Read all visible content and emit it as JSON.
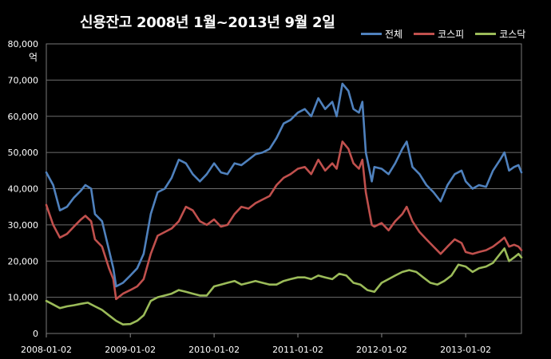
{
  "chart_data": {
    "type": "line",
    "title": "신용잔고  2008년 1월~2013년 9월 2일",
    "unit_label": "억",
    "ylim": [
      0,
      80000
    ],
    "y_ticks": [
      "0",
      "10,000",
      "20,000",
      "30,000",
      "40,000",
      "50,000",
      "60,000",
      "70,000",
      "80,000"
    ],
    "x_ticks": [
      "2008-01-02",
      "2009-01-02",
      "2010-01-02",
      "2011-01-02",
      "2012-01-02",
      "2013-01-02"
    ],
    "xlim": [
      "2008-01-02",
      "2013-09-02"
    ],
    "grid": "horizontal",
    "legend_position": "top-right",
    "series": [
      {
        "name": "전체",
        "color": "#4f81bd",
        "points": [
          [
            "2008-01-02",
            44500
          ],
          [
            "2008-02-01",
            41000
          ],
          [
            "2008-03-01",
            34000
          ],
          [
            "2008-04-01",
            35000
          ],
          [
            "2008-05-01",
            37500
          ],
          [
            "2008-06-01",
            39500
          ],
          [
            "2008-06-20",
            41000
          ],
          [
            "2008-07-15",
            40000
          ],
          [
            "2008-08-01",
            33000
          ],
          [
            "2008-09-01",
            31000
          ],
          [
            "2008-10-01",
            23000
          ],
          [
            "2008-10-20",
            18000
          ],
          [
            "2008-11-01",
            13000
          ],
          [
            "2008-12-01",
            14000
          ],
          [
            "2009-01-02",
            16000
          ],
          [
            "2009-02-01",
            18000
          ],
          [
            "2009-03-01",
            22000
          ],
          [
            "2009-04-01",
            33000
          ],
          [
            "2009-05-01",
            39000
          ],
          [
            "2009-06-01",
            40000
          ],
          [
            "2009-07-01",
            43000
          ],
          [
            "2009-08-01",
            48000
          ],
          [
            "2009-09-01",
            47000
          ],
          [
            "2009-10-01",
            44000
          ],
          [
            "2009-11-01",
            42000
          ],
          [
            "2009-12-01",
            44000
          ],
          [
            "2010-01-02",
            47000
          ],
          [
            "2010-02-01",
            44500
          ],
          [
            "2010-03-01",
            44000
          ],
          [
            "2010-04-01",
            47000
          ],
          [
            "2010-05-01",
            46500
          ],
          [
            "2010-06-01",
            48000
          ],
          [
            "2010-07-01",
            49500
          ],
          [
            "2010-08-01",
            50000
          ],
          [
            "2010-09-01",
            51000
          ],
          [
            "2010-10-01",
            54000
          ],
          [
            "2010-11-01",
            58000
          ],
          [
            "2010-12-01",
            59000
          ],
          [
            "2011-01-02",
            61000
          ],
          [
            "2011-02-01",
            62000
          ],
          [
            "2011-03-01",
            60000
          ],
          [
            "2011-04-01",
            65000
          ],
          [
            "2011-05-01",
            62000
          ],
          [
            "2011-06-01",
            64000
          ],
          [
            "2011-06-20",
            60000
          ],
          [
            "2011-07-15",
            69000
          ],
          [
            "2011-08-10",
            67000
          ],
          [
            "2011-09-01",
            62000
          ],
          [
            "2011-09-25",
            61000
          ],
          [
            "2011-10-10",
            64000
          ],
          [
            "2011-10-25",
            50000
          ],
          [
            "2011-11-20",
            42000
          ],
          [
            "2011-12-01",
            46000
          ],
          [
            "2012-01-02",
            45500
          ],
          [
            "2012-02-01",
            44000
          ],
          [
            "2012-03-01",
            47000
          ],
          [
            "2012-04-01",
            51000
          ],
          [
            "2012-04-20",
            53000
          ],
          [
            "2012-05-15",
            46000
          ],
          [
            "2012-06-15",
            44000
          ],
          [
            "2012-07-15",
            41000
          ],
          [
            "2012-08-15",
            39000
          ],
          [
            "2012-09-15",
            36500
          ],
          [
            "2012-10-15",
            41000
          ],
          [
            "2012-11-15",
            44000
          ],
          [
            "2012-12-15",
            45000
          ],
          [
            "2013-01-02",
            42000
          ],
          [
            "2013-02-01",
            40000
          ],
          [
            "2013-03-01",
            41000
          ],
          [
            "2013-04-01",
            40500
          ],
          [
            "2013-05-01",
            45000
          ],
          [
            "2013-06-01",
            48000
          ],
          [
            "2013-06-20",
            50000
          ],
          [
            "2013-07-10",
            45000
          ],
          [
            "2013-08-01",
            46000
          ],
          [
            "2013-08-20",
            46500
          ],
          [
            "2013-09-02",
            44500
          ]
        ]
      },
      {
        "name": "코스피",
        "color": "#c0504d",
        "points": [
          [
            "2008-01-02",
            35500
          ],
          [
            "2008-02-01",
            30000
          ],
          [
            "2008-03-01",
            26500
          ],
          [
            "2008-04-01",
            27500
          ],
          [
            "2008-05-01",
            29500
          ],
          [
            "2008-06-01",
            31500
          ],
          [
            "2008-06-20",
            32500
          ],
          [
            "2008-07-15",
            31000
          ],
          [
            "2008-08-01",
            26000
          ],
          [
            "2008-09-01",
            24000
          ],
          [
            "2008-10-01",
            18000
          ],
          [
            "2008-10-20",
            15000
          ],
          [
            "2008-11-01",
            9500
          ],
          [
            "2008-12-01",
            11000
          ],
          [
            "2009-01-02",
            12000
          ],
          [
            "2009-02-01",
            13000
          ],
          [
            "2009-03-01",
            15000
          ],
          [
            "2009-04-01",
            22000
          ],
          [
            "2009-05-01",
            27000
          ],
          [
            "2009-06-01",
            28000
          ],
          [
            "2009-07-01",
            29000
          ],
          [
            "2009-08-01",
            31000
          ],
          [
            "2009-09-01",
            35000
          ],
          [
            "2009-10-01",
            34000
          ],
          [
            "2009-11-01",
            31000
          ],
          [
            "2009-12-01",
            30000
          ],
          [
            "2010-01-02",
            31500
          ],
          [
            "2010-02-01",
            29500
          ],
          [
            "2010-03-01",
            30000
          ],
          [
            "2010-04-01",
            33000
          ],
          [
            "2010-05-01",
            35000
          ],
          [
            "2010-06-01",
            34500
          ],
          [
            "2010-07-01",
            36000
          ],
          [
            "2010-08-01",
            37000
          ],
          [
            "2010-09-01",
            38000
          ],
          [
            "2010-10-01",
            41000
          ],
          [
            "2010-11-01",
            43000
          ],
          [
            "2010-12-01",
            44000
          ],
          [
            "2011-01-02",
            45500
          ],
          [
            "2011-02-01",
            46000
          ],
          [
            "2011-03-01",
            44000
          ],
          [
            "2011-04-01",
            48000
          ],
          [
            "2011-05-01",
            45000
          ],
          [
            "2011-06-01",
            47000
          ],
          [
            "2011-06-20",
            45500
          ],
          [
            "2011-07-15",
            53000
          ],
          [
            "2011-08-10",
            51000
          ],
          [
            "2011-09-01",
            47000
          ],
          [
            "2011-09-25",
            45500
          ],
          [
            "2011-10-10",
            48000
          ],
          [
            "2011-10-25",
            39000
          ],
          [
            "2011-11-20",
            30000
          ],
          [
            "2011-12-01",
            29500
          ],
          [
            "2012-01-02",
            30500
          ],
          [
            "2012-02-01",
            28500
          ],
          [
            "2012-03-01",
            31000
          ],
          [
            "2012-04-01",
            33000
          ],
          [
            "2012-04-20",
            35000
          ],
          [
            "2012-05-15",
            31000
          ],
          [
            "2012-06-15",
            28000
          ],
          [
            "2012-07-15",
            26000
          ],
          [
            "2012-08-15",
            24000
          ],
          [
            "2012-09-15",
            22000
          ],
          [
            "2012-10-15",
            24000
          ],
          [
            "2012-11-15",
            26000
          ],
          [
            "2012-12-15",
            25000
          ],
          [
            "2013-01-02",
            22500
          ],
          [
            "2013-02-01",
            22000
          ],
          [
            "2013-03-01",
            22500
          ],
          [
            "2013-04-01",
            23000
          ],
          [
            "2013-05-01",
            24000
          ],
          [
            "2013-06-01",
            25500
          ],
          [
            "2013-06-20",
            26500
          ],
          [
            "2013-07-10",
            24000
          ],
          [
            "2013-08-01",
            24500
          ],
          [
            "2013-08-20",
            24000
          ],
          [
            "2013-09-02",
            23000
          ]
        ]
      },
      {
        "name": "코스닥",
        "color": "#9bbb59",
        "points": [
          [
            "2008-01-02",
            9000
          ],
          [
            "2008-02-01",
            8000
          ],
          [
            "2008-03-01",
            7000
          ],
          [
            "2008-04-01",
            7500
          ],
          [
            "2008-05-01",
            7800
          ],
          [
            "2008-06-01",
            8200
          ],
          [
            "2008-07-01",
            8500
          ],
          [
            "2008-08-01",
            7500
          ],
          [
            "2008-09-01",
            6500
          ],
          [
            "2008-10-01",
            5000
          ],
          [
            "2008-11-01",
            3500
          ],
          [
            "2008-12-01",
            2500
          ],
          [
            "2009-01-02",
            2600
          ],
          [
            "2009-02-01",
            3500
          ],
          [
            "2009-03-01",
            5000
          ],
          [
            "2009-04-01",
            9000
          ],
          [
            "2009-05-01",
            10000
          ],
          [
            "2009-06-01",
            10500
          ],
          [
            "2009-07-01",
            11000
          ],
          [
            "2009-08-01",
            12000
          ],
          [
            "2009-09-01",
            11500
          ],
          [
            "2009-10-01",
            11000
          ],
          [
            "2009-11-01",
            10500
          ],
          [
            "2009-12-01",
            10500
          ],
          [
            "2010-01-02",
            13000
          ],
          [
            "2010-02-01",
            13500
          ],
          [
            "2010-03-01",
            14000
          ],
          [
            "2010-04-01",
            14500
          ],
          [
            "2010-05-01",
            13500
          ],
          [
            "2010-06-01",
            14000
          ],
          [
            "2010-07-01",
            14500
          ],
          [
            "2010-08-01",
            14000
          ],
          [
            "2010-09-01",
            13500
          ],
          [
            "2010-10-01",
            13500
          ],
          [
            "2010-11-01",
            14500
          ],
          [
            "2010-12-01",
            15000
          ],
          [
            "2011-01-02",
            15500
          ],
          [
            "2011-02-01",
            15500
          ],
          [
            "2011-03-01",
            15000
          ],
          [
            "2011-04-01",
            16000
          ],
          [
            "2011-05-01",
            15500
          ],
          [
            "2011-06-01",
            15000
          ],
          [
            "2011-07-01",
            16500
          ],
          [
            "2011-08-01",
            16000
          ],
          [
            "2011-09-01",
            14000
          ],
          [
            "2011-10-01",
            13500
          ],
          [
            "2011-11-01",
            12000
          ],
          [
            "2011-12-01",
            11500
          ],
          [
            "2012-01-02",
            14000
          ],
          [
            "2012-02-01",
            15000
          ],
          [
            "2012-03-01",
            16000
          ],
          [
            "2012-04-01",
            17000
          ],
          [
            "2012-05-01",
            17500
          ],
          [
            "2012-06-01",
            17000
          ],
          [
            "2012-07-01",
            15500
          ],
          [
            "2012-08-01",
            14000
          ],
          [
            "2012-09-01",
            13500
          ],
          [
            "2012-10-01",
            14500
          ],
          [
            "2012-11-01",
            16000
          ],
          [
            "2012-12-01",
            19000
          ],
          [
            "2013-01-02",
            18500
          ],
          [
            "2013-02-01",
            17000
          ],
          [
            "2013-03-01",
            18000
          ],
          [
            "2013-04-01",
            18500
          ],
          [
            "2013-05-01",
            19500
          ],
          [
            "2013-06-01",
            22000
          ],
          [
            "2013-06-20",
            23500
          ],
          [
            "2013-07-10",
            20000
          ],
          [
            "2013-08-01",
            21000
          ],
          [
            "2013-08-20",
            22000
          ],
          [
            "2013-09-02",
            21000
          ]
        ]
      }
    ]
  }
}
